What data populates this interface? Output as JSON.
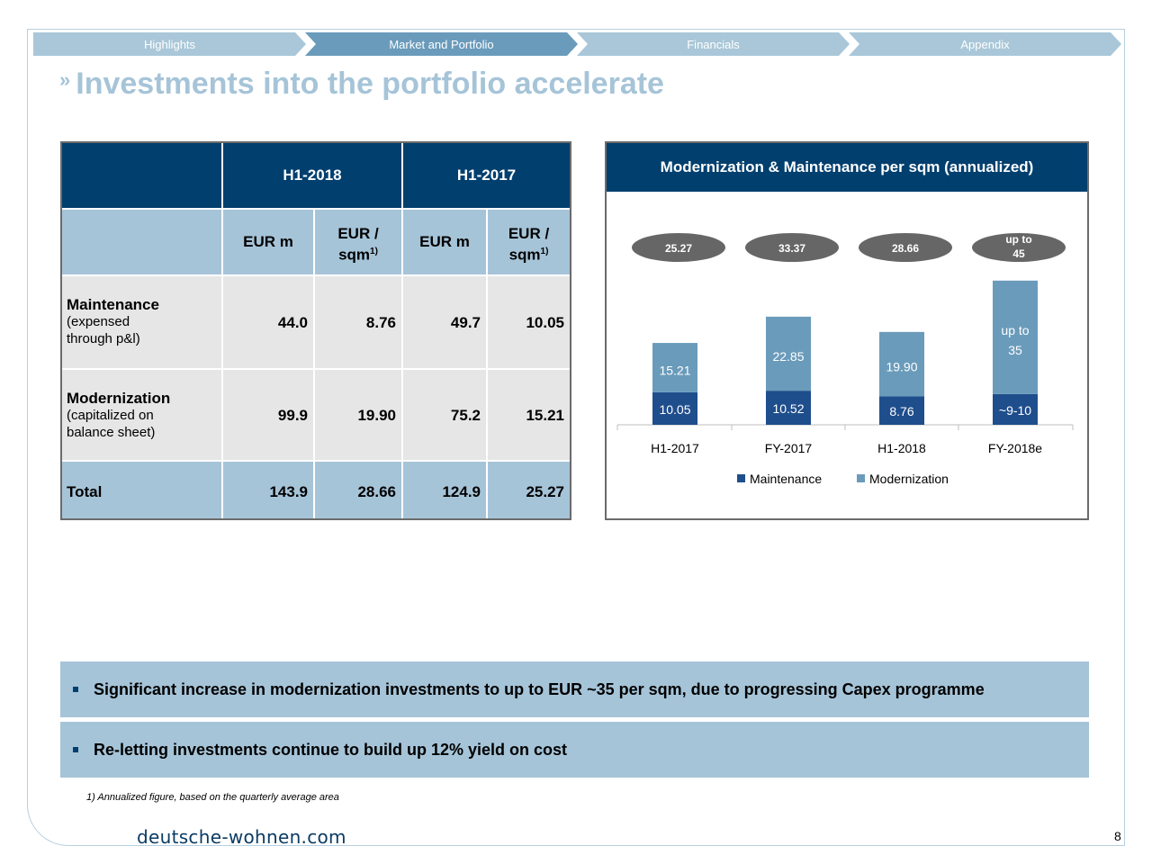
{
  "nav": {
    "tabs": [
      {
        "label": "Highlights",
        "active": false
      },
      {
        "label": "Market and Portfolio",
        "active": true
      },
      {
        "label": "Financials",
        "active": false
      },
      {
        "label": "Appendix",
        "active": false
      }
    ]
  },
  "title": {
    "chevron": "»",
    "text": "Investments into the portfolio accelerate"
  },
  "table": {
    "periods": [
      "H1-2018",
      "H1-2017"
    ],
    "units": [
      {
        "main": "EUR m",
        "sup": ""
      },
      {
        "main": "EUR / sqm",
        "sup": "1)"
      },
      {
        "main": "EUR m",
        "sup": ""
      },
      {
        "main": "EUR / sqm",
        "sup": "1)"
      }
    ],
    "unit_eur_sqm_line1": "EUR /",
    "unit_eur_sqm_line2": "sqm",
    "rows": [
      {
        "label": "Maintenance",
        "sub1": "(expensed",
        "sub2": "through p&l)",
        "values": [
          "44.0",
          "8.76",
          "49.7",
          "10.05"
        ]
      },
      {
        "label": "Modernization",
        "sub1": "(capitalized on",
        "sub2": "balance sheet)",
        "values": [
          "99.9",
          "19.90",
          "75.2",
          "15.21"
        ]
      },
      {
        "label": "Total",
        "sub1": "",
        "sub2": "",
        "values": [
          "143.9",
          "28.66",
          "124.9",
          "25.27"
        ]
      }
    ]
  },
  "chart_data": {
    "type": "bar",
    "stacked": true,
    "title": "Modernization & Maintenance per sqm (annualized)",
    "categories": [
      "H1-2017",
      "FY-2017",
      "H1-2018",
      "FY-2018e"
    ],
    "series": [
      {
        "name": "Maintenance",
        "color": "#1f4e8c",
        "values": [
          10.05,
          10.52,
          8.76,
          9.5
        ],
        "labels": [
          "10.05",
          "10.52",
          "8.76",
          "~9-10"
        ]
      },
      {
        "name": "Modernization",
        "color": "#6a9bbb",
        "values": [
          15.21,
          22.85,
          19.9,
          35
        ],
        "labels": [
          "15.21",
          "22.85",
          "19.90",
          "up to 35"
        ]
      }
    ],
    "totals": [
      "25.27",
      "33.37",
      "28.66",
      "up to 45"
    ],
    "legend_position": "bottom",
    "grid": false
  },
  "bullets": [
    "Significant increase in modernization investments to up to EUR ~35 per sqm, due to progressing Capex programme",
    "Re-letting investments continue to build up 12% yield on cost"
  ],
  "footnote": "1) Annualized figure, based on the quarterly average area",
  "brand": "deutsche-wohnen.com",
  "page_number": "8"
}
